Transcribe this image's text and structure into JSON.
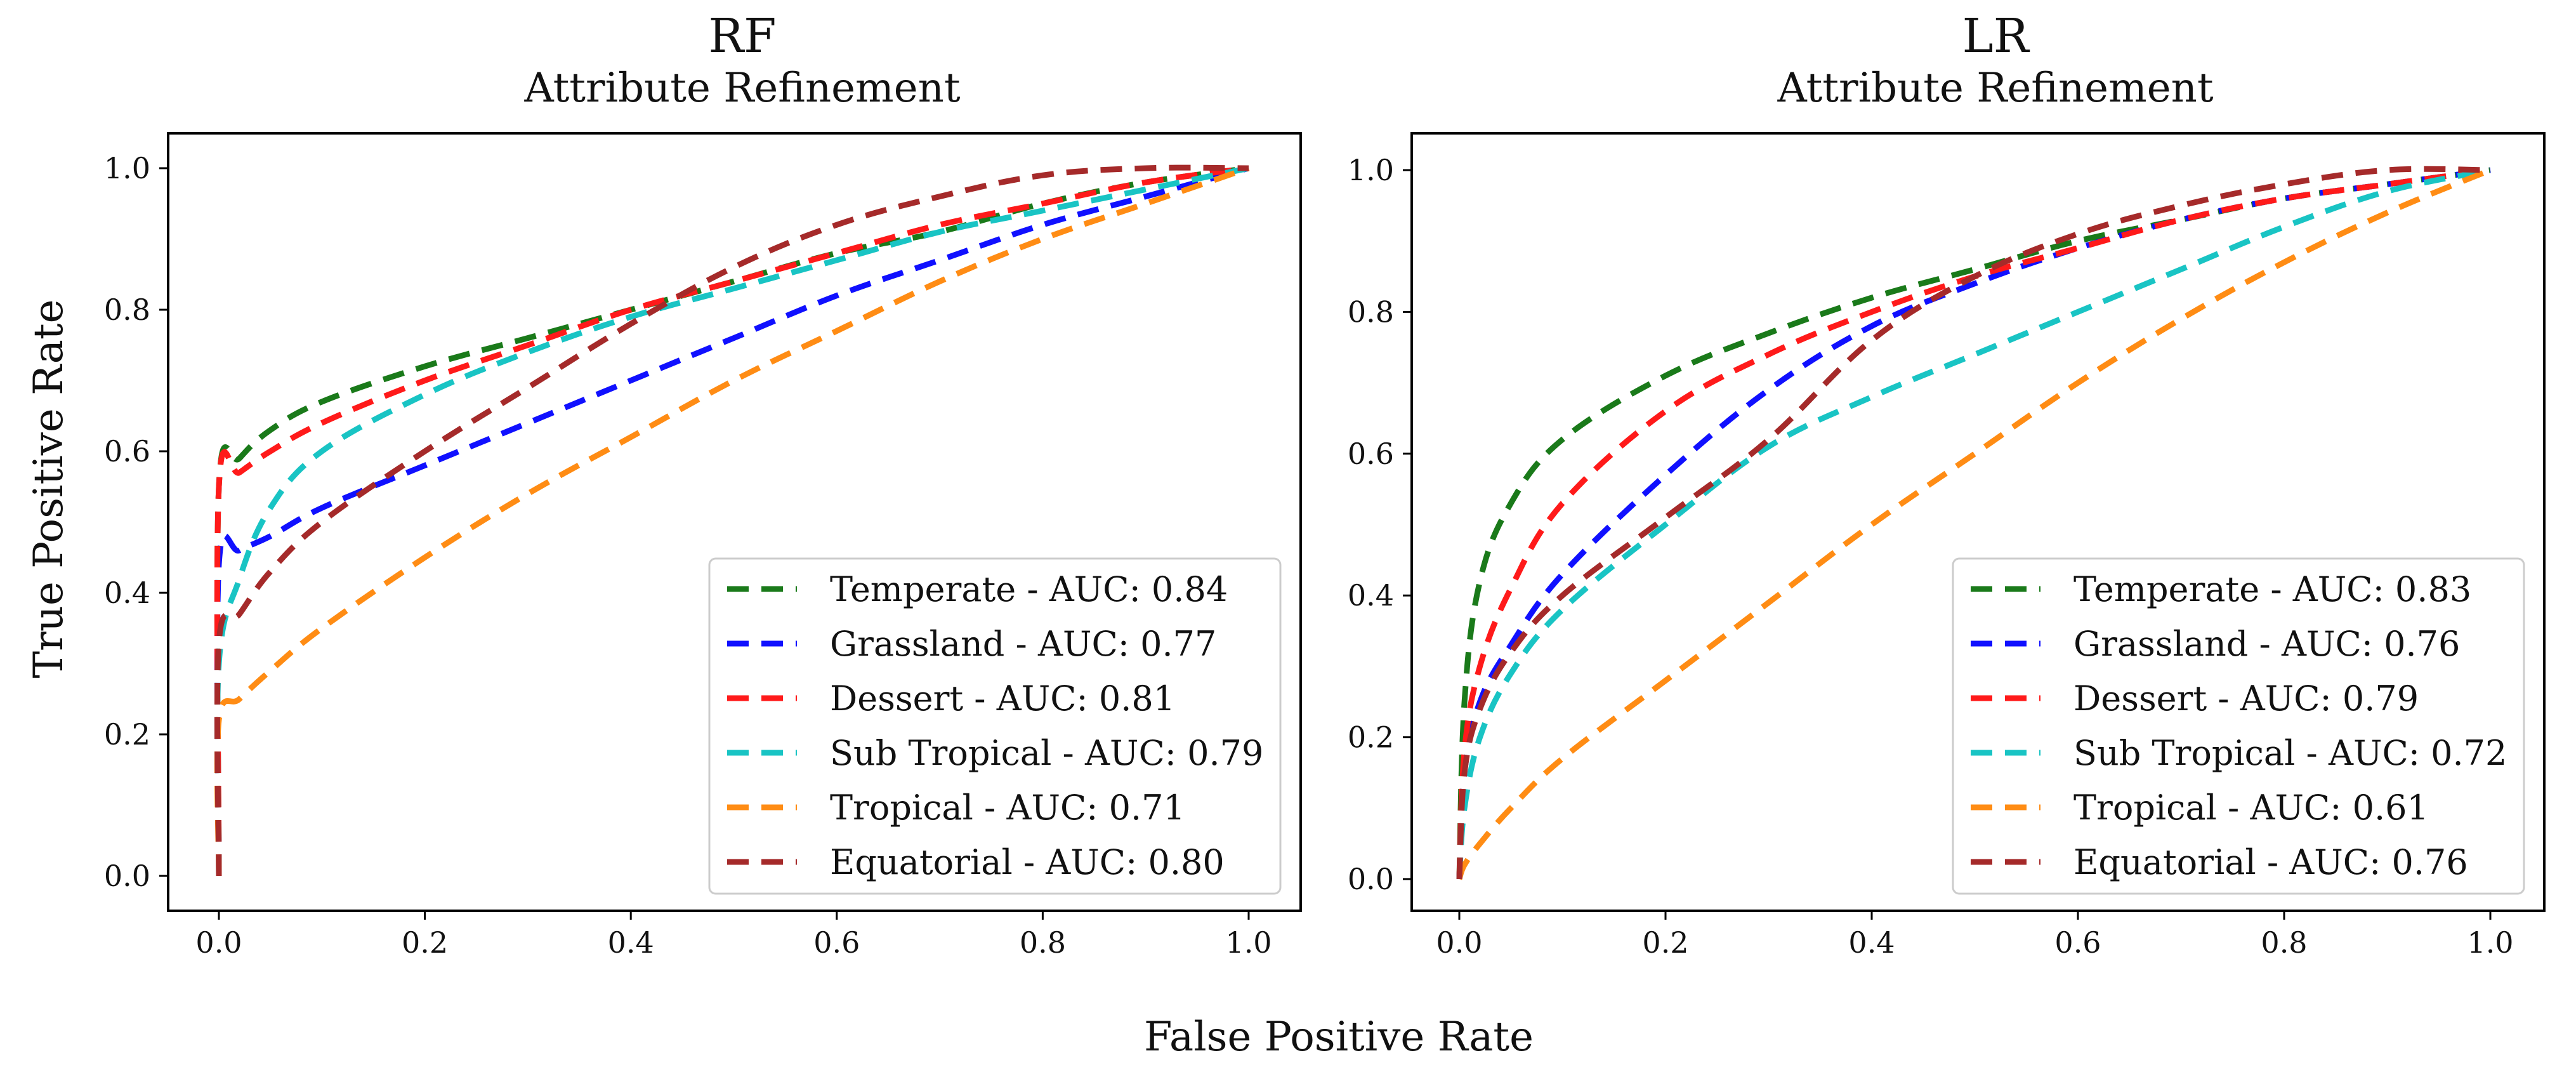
{
  "figure": {
    "xlabel": "False Positive Rate",
    "ylabel": "True Positive Rate"
  },
  "colors": {
    "Temperate": "#1a7a1a",
    "Grassland": "#1010ff",
    "Dessert": "#ff1a1a",
    "Sub Tropical": "#19c4c4",
    "Tropical": "#ff8c14",
    "Equatorial": "#a52a2a"
  },
  "chart_data": [
    {
      "type": "line",
      "title": "RF",
      "subtitle": "Attribute Refinement",
      "xlabel": "",
      "ylabel": "True Positive Rate",
      "xlim": [
        0,
        1
      ],
      "ylim": [
        0,
        1
      ],
      "xticks": [
        "0.0",
        "0.2",
        "0.4",
        "0.6",
        "0.8",
        "1.0"
      ],
      "yticks": [
        "0.0",
        "0.2",
        "0.4",
        "0.6",
        "0.8",
        "1.0"
      ],
      "legend_position": "lower-right",
      "series": [
        {
          "name": "Temperate",
          "label": "Temperate - AUC: 0.84",
          "auc": 0.84,
          "x": [
            0,
            0,
            0.02,
            0.05,
            0.1,
            0.2,
            0.3,
            0.4,
            0.5,
            0.6,
            0.7,
            0.8,
            0.9,
            1.0
          ],
          "y": [
            0,
            0.55,
            0.59,
            0.63,
            0.67,
            0.72,
            0.76,
            0.8,
            0.84,
            0.88,
            0.91,
            0.95,
            0.98,
            1.0
          ]
        },
        {
          "name": "Grassland",
          "label": "Grassland - AUC: 0.77",
          "auc": 0.77,
          "x": [
            0,
            0,
            0.02,
            0.05,
            0.1,
            0.2,
            0.3,
            0.4,
            0.5,
            0.6,
            0.7,
            0.8,
            0.9,
            1.0
          ],
          "y": [
            0,
            0.44,
            0.46,
            0.48,
            0.52,
            0.58,
            0.64,
            0.7,
            0.76,
            0.82,
            0.87,
            0.92,
            0.96,
            1.0
          ]
        },
        {
          "name": "Dessert",
          "label": "Dessert - AUC: 0.81",
          "auc": 0.81,
          "x": [
            0,
            0,
            0.02,
            0.05,
            0.1,
            0.2,
            0.3,
            0.4,
            0.5,
            0.6,
            0.7,
            0.8,
            0.9,
            1.0
          ],
          "y": [
            0,
            0.55,
            0.57,
            0.6,
            0.64,
            0.7,
            0.75,
            0.8,
            0.84,
            0.88,
            0.92,
            0.95,
            0.98,
            1.0
          ]
        },
        {
          "name": "Sub Tropical",
          "label": "Sub Tropical - AUC: 0.79",
          "auc": 0.79,
          "x": [
            0,
            0,
            0.02,
            0.05,
            0.1,
            0.2,
            0.3,
            0.4,
            0.5,
            0.6,
            0.7,
            0.8,
            0.9,
            1.0
          ],
          "y": [
            0,
            0.3,
            0.42,
            0.52,
            0.6,
            0.68,
            0.74,
            0.79,
            0.83,
            0.87,
            0.91,
            0.94,
            0.97,
            1.0
          ]
        },
        {
          "name": "Tropical",
          "label": "Tropical - AUC: 0.71",
          "auc": 0.71,
          "x": [
            0,
            0,
            0.02,
            0.05,
            0.1,
            0.2,
            0.3,
            0.4,
            0.5,
            0.6,
            0.7,
            0.8,
            0.9,
            1.0
          ],
          "y": [
            0,
            0.22,
            0.25,
            0.29,
            0.35,
            0.45,
            0.54,
            0.62,
            0.7,
            0.77,
            0.84,
            0.9,
            0.95,
            1.0
          ]
        },
        {
          "name": "Equatorial",
          "label": "Equatorial - AUC: 0.80",
          "auc": 0.8,
          "x": [
            0,
            0,
            0.02,
            0.05,
            0.1,
            0.2,
            0.3,
            0.4,
            0.5,
            0.6,
            0.7,
            0.8,
            0.9,
            1.0
          ],
          "y": [
            0,
            0.33,
            0.37,
            0.43,
            0.5,
            0.6,
            0.69,
            0.78,
            0.86,
            0.92,
            0.96,
            0.99,
            1.0,
            1.0
          ]
        }
      ]
    },
    {
      "type": "line",
      "title": "LR",
      "subtitle": "Attribute Refinement",
      "xlabel": "",
      "ylabel": "",
      "xlim": [
        0,
        1
      ],
      "ylim": [
        0,
        1
      ],
      "xticks": [
        "0.0",
        "0.2",
        "0.4",
        "0.6",
        "0.8",
        "1.0"
      ],
      "yticks": [
        "0.0",
        "0.2",
        "0.4",
        "0.6",
        "0.8",
        "1.0"
      ],
      "legend_position": "lower-right",
      "series": [
        {
          "name": "Temperate",
          "label": "Temperate - AUC: 0.83",
          "auc": 0.83,
          "x": [
            0,
            0.005,
            0.02,
            0.05,
            0.1,
            0.2,
            0.3,
            0.4,
            0.5,
            0.6,
            0.7,
            0.8,
            0.9,
            1.0
          ],
          "y": [
            0,
            0.25,
            0.42,
            0.53,
            0.62,
            0.71,
            0.77,
            0.82,
            0.86,
            0.9,
            0.93,
            0.96,
            0.98,
            1.0
          ]
        },
        {
          "name": "Grassland",
          "label": "Grassland - AUC: 0.76",
          "auc": 0.76,
          "x": [
            0,
            0.005,
            0.02,
            0.05,
            0.1,
            0.2,
            0.3,
            0.4,
            0.5,
            0.6,
            0.7,
            0.8,
            0.9,
            1.0
          ],
          "y": [
            0,
            0.15,
            0.25,
            0.33,
            0.43,
            0.57,
            0.69,
            0.78,
            0.84,
            0.89,
            0.93,
            0.96,
            0.98,
            1.0
          ]
        },
        {
          "name": "Dessert",
          "label": "Dessert - AUC: 0.79",
          "auc": 0.79,
          "x": [
            0,
            0.005,
            0.02,
            0.05,
            0.1,
            0.2,
            0.3,
            0.4,
            0.5,
            0.6,
            0.7,
            0.8,
            0.9,
            1.0
          ],
          "y": [
            0,
            0.18,
            0.3,
            0.41,
            0.53,
            0.66,
            0.74,
            0.8,
            0.85,
            0.89,
            0.93,
            0.96,
            0.98,
            1.0
          ]
        },
        {
          "name": "Sub Tropical",
          "label": "Sub Tropical - AUC: 0.72",
          "auc": 0.72,
          "x": [
            0,
            0.005,
            0.02,
            0.05,
            0.1,
            0.2,
            0.3,
            0.4,
            0.5,
            0.6,
            0.7,
            0.8,
            0.9,
            1.0
          ],
          "y": [
            0,
            0.1,
            0.2,
            0.29,
            0.38,
            0.5,
            0.61,
            0.68,
            0.74,
            0.8,
            0.86,
            0.92,
            0.97,
            1.0
          ]
        },
        {
          "name": "Tropical",
          "label": "Tropical - AUC: 0.61",
          "auc": 0.61,
          "x": [
            0,
            0.005,
            0.02,
            0.05,
            0.1,
            0.2,
            0.3,
            0.4,
            0.5,
            0.6,
            0.7,
            0.8,
            0.9,
            1.0
          ],
          "y": [
            0,
            0.02,
            0.05,
            0.1,
            0.17,
            0.28,
            0.39,
            0.5,
            0.6,
            0.7,
            0.79,
            0.87,
            0.94,
            1.0
          ]
        },
        {
          "name": "Equatorial",
          "label": "Equatorial - AUC: 0.76",
          "auc": 0.76,
          "x": [
            0,
            0.005,
            0.02,
            0.05,
            0.1,
            0.2,
            0.3,
            0.4,
            0.5,
            0.6,
            0.7,
            0.8,
            0.9,
            1.0
          ],
          "y": [
            0,
            0.15,
            0.24,
            0.32,
            0.4,
            0.51,
            0.62,
            0.76,
            0.85,
            0.91,
            0.95,
            0.98,
            1.0,
            1.0
          ]
        }
      ]
    }
  ]
}
